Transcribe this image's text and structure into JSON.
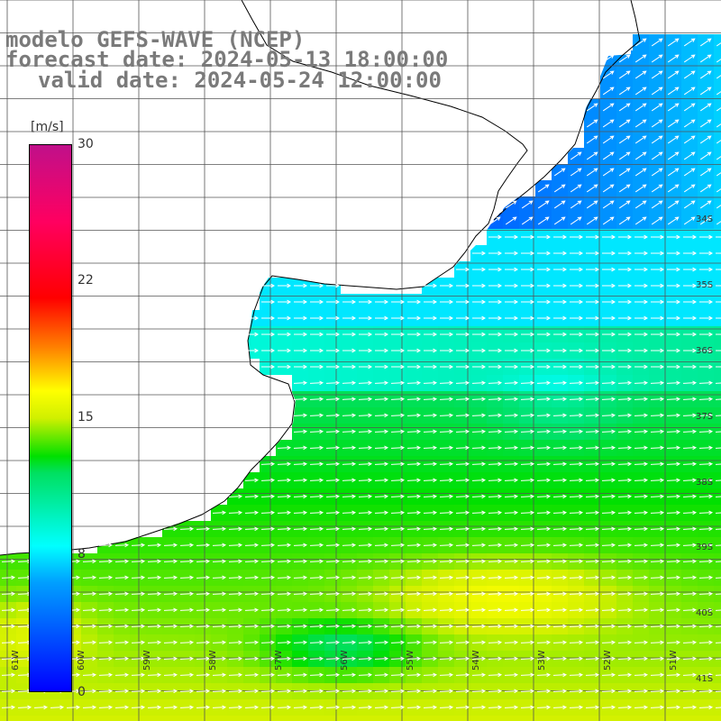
{
  "title": {
    "line1": "modelo GEFS-WAVE (NCEP)",
    "line2": "forecast date: 2024-05-13 18:00:00",
    "line3": "valid date: 2024-05-24 12:00:00"
  },
  "colorbar": {
    "unit": "[m/s]",
    "ticks": [
      "30",
      "22",
      "15",
      "8",
      "0"
    ],
    "min": 0,
    "max": 30,
    "colors": [
      "#0000ff",
      "#00a0ff",
      "#00ffff",
      "#00e000",
      "#ffff00",
      "#ff8000",
      "#ff0000",
      "#c0108a"
    ]
  },
  "map": {
    "land_color": "#ffffff",
    "coastline_color": "#000000",
    "grid_color": "#555555",
    "arrow_color": "#ffffff",
    "lat_labels": [
      "34S",
      "35S",
      "36S",
      "37S",
      "38S",
      "39S",
      "40S",
      "41S"
    ],
    "lon_labels": [
      "61W",
      "60W",
      "59W",
      "58W",
      "57W",
      "56W",
      "55W",
      "54W",
      "53W",
      "52W",
      "51W"
    ],
    "wind_direction": "west-to-east",
    "wind_speed_regions": [
      {
        "region": "coastal Uruguay / Rio de la Plata",
        "speed_ms": 7
      },
      {
        "region": "northeast offshore",
        "speed_ms": 4
      },
      {
        "region": "central shelf",
        "speed_ms": 12
      },
      {
        "region": "south / southeast",
        "speed_ms": 15
      }
    ]
  }
}
